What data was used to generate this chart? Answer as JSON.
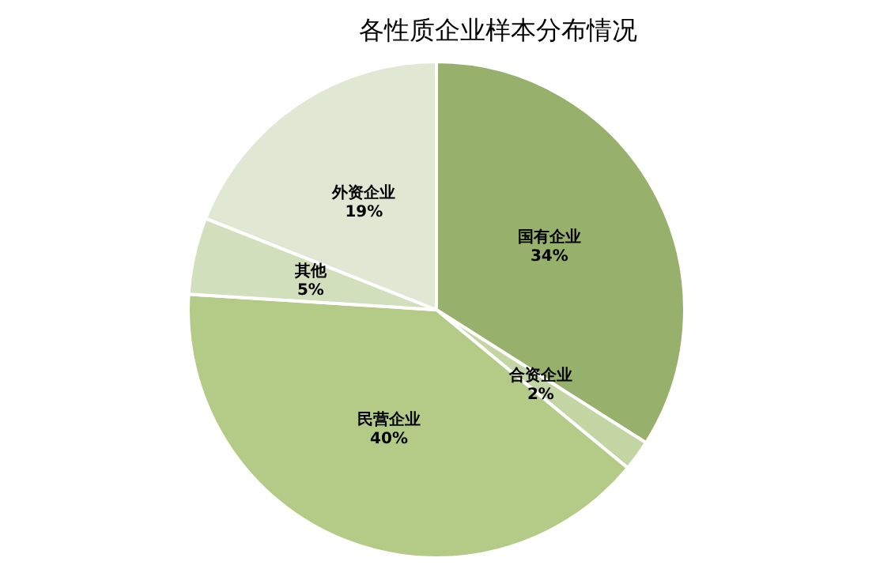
{
  "chart_data": {
    "type": "pie",
    "title": "各性质企业样本分布情况",
    "categories": [
      "国有企业",
      "合资企业",
      "民营企业",
      "其他",
      "外资企业"
    ],
    "values": [
      34,
      2,
      40,
      5,
      19
    ],
    "value_labels": [
      "34%",
      "2%",
      "40%",
      "5%",
      "19%"
    ],
    "colors": [
      "#97b06c",
      "#c3d5a3",
      "#b4cb87",
      "#d2dfbc",
      "#e0e8d3"
    ],
    "legend": false
  }
}
